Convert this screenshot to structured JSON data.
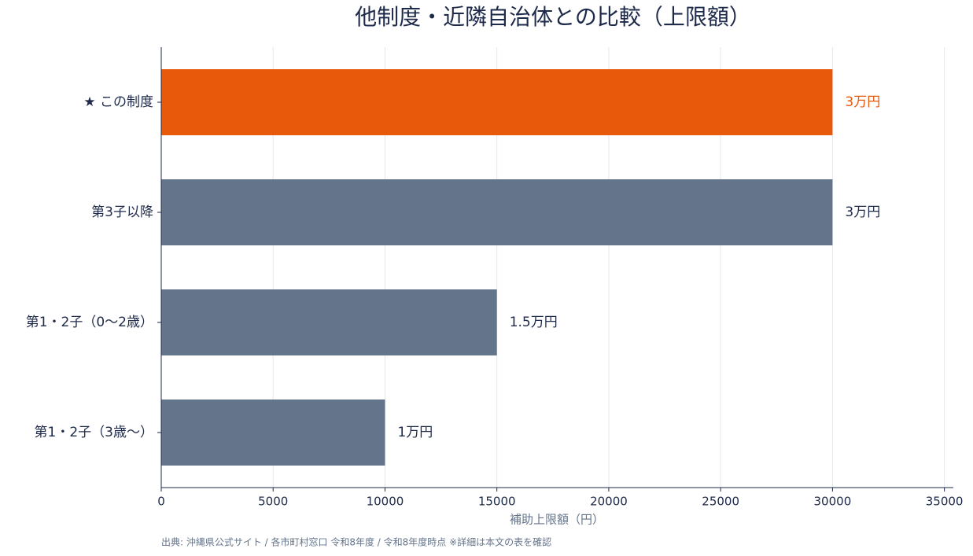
{
  "chart_data": {
    "type": "barh",
    "title": "他制度・近隣自治体との比較（上限額）",
    "categories": [
      "★ この制度",
      "第3子以降",
      "第1・2子（0〜2歳）",
      "第1・2子（3歳〜）"
    ],
    "values": [
      30000,
      30000,
      15000,
      10000
    ],
    "value_labels": [
      "3万円",
      "3万円",
      "1.5万円",
      "1万円"
    ],
    "colors": [
      "#e8590c",
      "#64748b",
      "#64748b",
      "#64748b"
    ],
    "value_label_colors": [
      "#e8590c",
      "#1e2a4a",
      "#1e2a4a",
      "#1e2a4a"
    ],
    "xlabel": "補助上限額（円）",
    "xlim": [
      0,
      35400
    ],
    "xticks": [
      0,
      5000,
      10000,
      15000,
      20000,
      25000,
      30000,
      35000
    ],
    "grid": true,
    "source": "出典: 沖縄県公式サイト / 各市町村窓口 令和8年度 / 令和8年度時点 ※詳細は本文の表を確認"
  }
}
